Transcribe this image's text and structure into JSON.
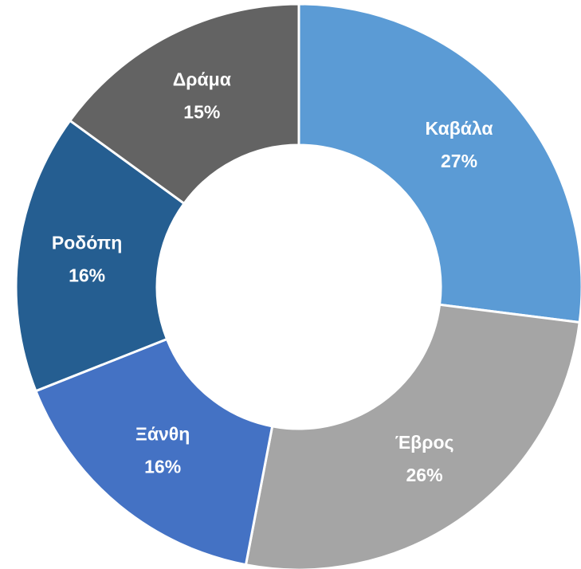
{
  "chart_data": {
    "type": "donut",
    "categories": [
      "Καβάλα",
      "Έβρος",
      "Ξάνθη",
      "Ροδόπη",
      "Δράμα"
    ],
    "values": [
      27,
      26,
      16,
      16,
      15
    ],
    "value_labels": [
      "27%",
      "26%",
      "16%",
      "16%",
      "15%"
    ],
    "colors": [
      "#5b9bd5",
      "#a5a5a5",
      "#4472c4",
      "#255e91",
      "#636363"
    ]
  }
}
